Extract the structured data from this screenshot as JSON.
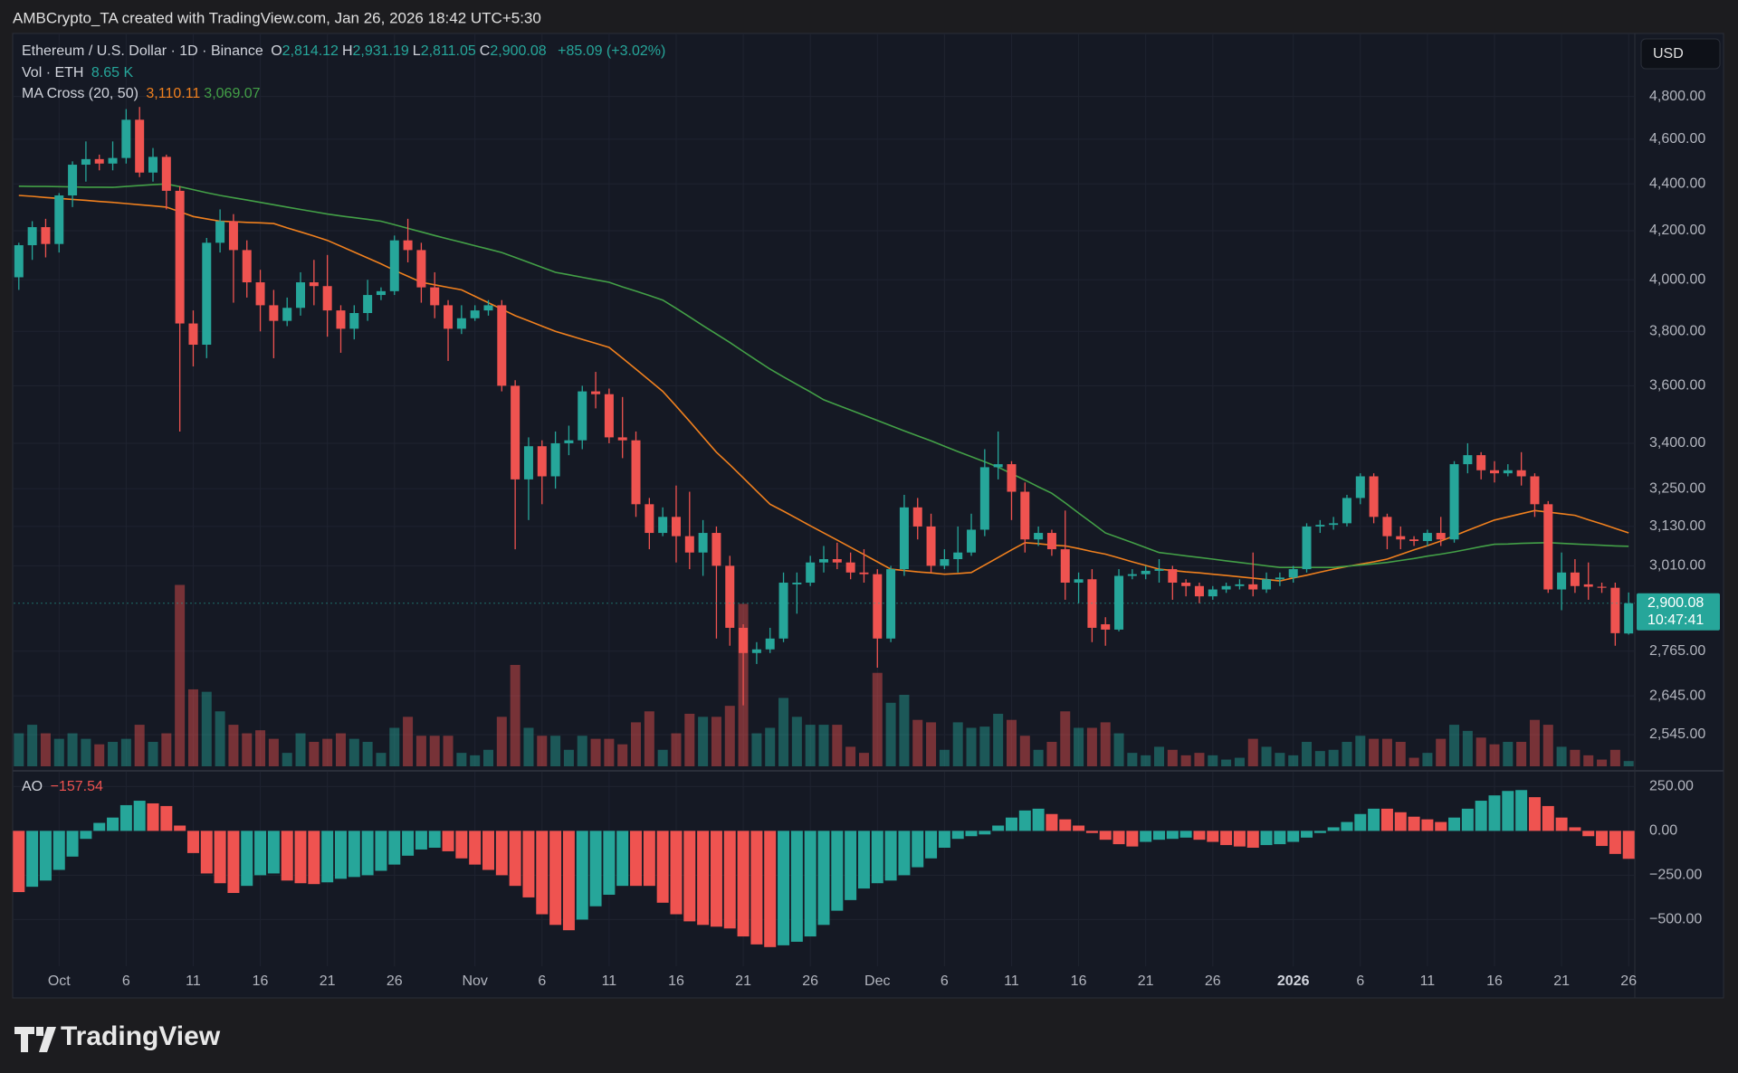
{
  "header": {
    "attribution": "AMBCrypto_TA created with TradingView.com, Jan 26, 2026 18:42 UTC+5:30",
    "currency": "USD",
    "logo": "TradingView"
  },
  "chart_data": [
    {
      "type": "candlestick",
      "title": "Ethereum / U.S. Dollar · 1D · Binance",
      "ohlc_legend": [
        {
          "key": "O",
          "value": "2,814.12"
        },
        {
          "key": "H",
          "value": "2,931.19"
        },
        {
          "key": "L",
          "value": "2,811.05"
        },
        {
          "key": "C",
          "value": "2,900.08"
        }
      ],
      "change": "+85.09 (+3.02%)",
      "volume_legend": {
        "name": "Vol · ETH",
        "value": "8.65 K"
      },
      "ma_legend": "MA Cross (20, 50)",
      "last_price_label": "2,900.08",
      "countdown": "10:47:41",
      "log_scale": true,
      "grid": true,
      "ylim": [
        2466,
        5110
      ],
      "yticks": [
        {
          "value": 4800,
          "label": "4,800.00"
        },
        {
          "value": 4600,
          "label": "4,600.00"
        },
        {
          "value": 4400,
          "label": "4,400.00"
        },
        {
          "value": 4200,
          "label": "4,200.00"
        },
        {
          "value": 4000,
          "label": "4,000.00"
        },
        {
          "value": 3800,
          "label": "3,800.00"
        },
        {
          "value": 3600,
          "label": "3,600.00"
        },
        {
          "value": 3400,
          "label": "3,400.00"
        },
        {
          "value": 3250,
          "label": "3,250.00"
        },
        {
          "value": 3130,
          "label": "3,130.00"
        },
        {
          "value": 3010,
          "label": "3,010.00"
        },
        {
          "value": 2765,
          "label": "2,765.00"
        },
        {
          "value": 2645,
          "label": "2,645.00"
        },
        {
          "value": 2545,
          "label": "2,545.00"
        }
      ],
      "colors": {
        "up": "#26a69a",
        "down": "#ef5350"
      },
      "categories": [
        null,
        null,
        null,
        "Oct",
        null,
        null,
        null,
        null,
        "6",
        null,
        null,
        null,
        null,
        "11",
        null,
        null,
        null,
        null,
        "16",
        null,
        null,
        null,
        null,
        "21",
        null,
        null,
        null,
        null,
        "26",
        null,
        null,
        null,
        null,
        null,
        "Nov",
        null,
        null,
        null,
        null,
        "6",
        null,
        null,
        null,
        null,
        "11",
        null,
        null,
        null,
        null,
        "16",
        null,
        null,
        null,
        null,
        "21",
        null,
        null,
        null,
        null,
        "26",
        null,
        null,
        null,
        null,
        "Dec",
        null,
        null,
        null,
        null,
        "6",
        null,
        null,
        null,
        null,
        "11",
        null,
        null,
        null,
        null,
        "16",
        null,
        null,
        null,
        null,
        "21",
        null,
        null,
        null,
        null,
        "26",
        null,
        null,
        null,
        null,
        null,
        "2026",
        null,
        null,
        null,
        null,
        "6",
        null,
        null,
        null,
        null,
        "11",
        null,
        null,
        null,
        null,
        "16",
        null,
        null,
        null,
        null,
        "21",
        null,
        null,
        null,
        null,
        "26"
      ],
      "open": [
        4010,
        4140,
        4215,
        4145,
        4350,
        4485,
        4510,
        4490,
        4515,
        4690,
        4450,
        4520,
        4370,
        3830,
        3750,
        4150,
        4240,
        4120,
        3990,
        3900,
        3840,
        3890,
        3990,
        3975,
        3880,
        3810,
        3870,
        3940,
        3955,
        4160,
        4120,
        3970,
        3900,
        3810,
        3850,
        3880,
        3900,
        3600,
        3280,
        3390,
        3290,
        3400,
        3410,
        3580,
        3570,
        3420,
        3410,
        3200,
        3110,
        3160,
        3100,
        3050,
        3110,
        3010,
        2830,
        2760,
        2770,
        2800,
        2955,
        2960,
        3020,
        3030,
        3020,
        2990,
        2985,
        2800,
        3000,
        3190,
        3130,
        3010,
        3030,
        3050,
        3120,
        3320,
        3330,
        3240,
        3090,
        3110,
        3060,
        2960,
        2970,
        2840,
        2825,
        2980,
        2985,
        2995,
        3000,
        2960,
        2950,
        2920,
        2940,
        2950,
        2955,
        2940,
        2970,
        2975,
        3000,
        3130,
        3135,
        3140,
        3220,
        3290,
        3160,
        3100,
        3090,
        3085,
        3110,
        3090,
        3330,
        3360,
        3310,
        3300,
        3310,
        3290,
        3200,
        2940,
        2990,
        2955,
        2948,
        2945,
        2814.12
      ],
      "high": [
        4150,
        4240,
        4250,
        4360,
        4500,
        4590,
        4530,
        4590,
        4740,
        4750,
        4560,
        4530,
        4390,
        3880,
        4170,
        4290,
        4270,
        4160,
        4040,
        3960,
        3930,
        4030,
        4080,
        4100,
        3900,
        3900,
        4000,
        3970,
        4180,
        4250,
        4150,
        4030,
        3920,
        3900,
        3900,
        3920,
        3920,
        3620,
        3420,
        3410,
        3440,
        3460,
        3600,
        3650,
        3590,
        3560,
        3440,
        3220,
        3190,
        3260,
        3240,
        3150,
        3130,
        3040,
        2840,
        2790,
        2830,
        2990,
        2990,
        3040,
        3070,
        3080,
        3050,
        3060,
        3000,
        3010,
        3230,
        3220,
        3170,
        3060,
        3130,
        3170,
        3380,
        3440,
        3340,
        3270,
        3130,
        3120,
        3180,
        2990,
        3000,
        2860,
        3000,
        3000,
        3010,
        3030,
        3010,
        2970,
        2960,
        2950,
        2960,
        2970,
        3050,
        2990,
        2990,
        3010,
        3140,
        3150,
        3160,
        3230,
        3300,
        3300,
        3170,
        3130,
        3100,
        3120,
        3160,
        3340,
        3400,
        3370,
        3340,
        3330,
        3370,
        3300,
        3210,
        3050,
        3030,
        3020,
        2960,
        2960,
        2931.19
      ],
      "low": [
        3960,
        4080,
        4090,
        4110,
        4300,
        4410,
        4460,
        4460,
        4490,
        4430,
        4410,
        4290,
        3440,
        3670,
        3700,
        4110,
        3910,
        3930,
        3800,
        3700,
        3820,
        3860,
        3900,
        3780,
        3720,
        3770,
        3840,
        3920,
        3940,
        4070,
        3910,
        3850,
        3690,
        3790,
        3840,
        3860,
        3580,
        3060,
        3150,
        3200,
        3250,
        3360,
        3380,
        3520,
        3400,
        3350,
        3160,
        3060,
        3100,
        3020,
        3000,
        2980,
        2800,
        2780,
        2620,
        2730,
        2760,
        2790,
        2870,
        2950,
        2990,
        3000,
        2970,
        2960,
        2720,
        2790,
        2980,
        3090,
        2990,
        3000,
        2990,
        3040,
        3100,
        3280,
        3150,
        3050,
        3070,
        3040,
        2910,
        2900,
        2790,
        2780,
        2820,
        2970,
        2970,
        2960,
        2910,
        2920,
        2900,
        2910,
        2930,
        2940,
        2920,
        2930,
        2950,
        2960,
        2990,
        3110,
        3120,
        3130,
        3200,
        3140,
        3060,
        3060,
        3070,
        3070,
        3070,
        3080,
        3300,
        3280,
        3270,
        3290,
        3260,
        3160,
        2930,
        2880,
        2930,
        2910,
        2930,
        2780,
        2811.05
      ],
      "close": [
        4140,
        4215,
        4145,
        4350,
        4485,
        4510,
        4490,
        4515,
        4690,
        4450,
        4520,
        4370,
        3830,
        3750,
        4150,
        4240,
        4120,
        3990,
        3900,
        3840,
        3890,
        3990,
        3975,
        3880,
        3810,
        3870,
        3940,
        3955,
        4160,
        4120,
        3970,
        3900,
        3810,
        3850,
        3880,
        3900,
        3600,
        3280,
        3390,
        3290,
        3400,
        3410,
        3580,
        3570,
        3420,
        3410,
        3200,
        3110,
        3160,
        3100,
        3050,
        3110,
        3010,
        2830,
        2760,
        2770,
        2800,
        2960,
        2960,
        3020,
        3030,
        3020,
        2990,
        2985,
        2800,
        3000,
        3190,
        3130,
        3010,
        3030,
        3050,
        3120,
        3320,
        3330,
        3240,
        3090,
        3110,
        3060,
        2960,
        2970,
        2830,
        2825,
        2980,
        2985,
        2995,
        3000,
        2960,
        2950,
        2920,
        2940,
        2950,
        2955,
        2940,
        2970,
        2975,
        3000,
        3130,
        3135,
        3140,
        3220,
        3290,
        3160,
        3100,
        3090,
        3085,
        3110,
        3090,
        3330,
        3360,
        3310,
        3300,
        3310,
        3290,
        3200,
        2940,
        2990,
        2950,
        2948,
        2945,
        2815,
        2900.08
      ],
      "volume": {
        "vlim": [
          0,
          1200
        ],
        "values": [
          54,
          68,
          54,
          45,
          54,
          45,
          36,
          40,
          45,
          68,
          40,
          54,
          297,
          126,
          122,
          90,
          68,
          54,
          59,
          45,
          22,
          54,
          40,
          45,
          54,
          45,
          40,
          22,
          63,
          81,
          50,
          50,
          50,
          22,
          18,
          27,
          81,
          166,
          63,
          50,
          50,
          27,
          50,
          45,
          45,
          36,
          72,
          90,
          27,
          54,
          86,
          81,
          81,
          99,
          266,
          54,
          63,
          112,
          81,
          68,
          68,
          68,
          32,
          22,
          153,
          104,
          117,
          76,
          72,
          27,
          72,
          63,
          65,
          86,
          76,
          50,
          27,
          40,
          90,
          63,
          63,
          72,
          54,
          22,
          18,
          32,
          27,
          18,
          22,
          18,
          11,
          14,
          45,
          32,
          22,
          18,
          40,
          25,
          27,
          40,
          50,
          45,
          45,
          40,
          14,
          22,
          45,
          68,
          58,
          47,
          36,
          40,
          40,
          76,
          68,
          32,
          27,
          18,
          11,
          27,
          8.65
        ]
      },
      "series": [
        {
          "color": "#f0801e",
          "legend_value": "3,110.11",
          "values": [
            4350,
            4346,
            4341,
            4337,
            4333,
            4329,
            4324,
            4320,
            4315,
            4310,
            4305,
            4300,
            4280,
            4260,
            4250,
            4240,
            4238,
            4235,
            4233,
            4230,
            4212,
            4195,
            4178,
            4160,
            4136,
            4112,
            4088,
            4064,
            4038,
            4014,
            3990,
            3980,
            3970,
            3960,
            3935,
            3910,
            3885,
            3860,
            3840,
            3820,
            3800,
            3785,
            3770,
            3755,
            3740,
            3700,
            3660,
            3620,
            3580,
            3528,
            3475,
            3422,
            3370,
            3328,
            3285,
            3242,
            3200,
            3178,
            3155,
            3132,
            3110,
            3088,
            3066,
            3044,
            3022,
            3000,
            2996,
            2992,
            2989,
            2985,
            2987,
            2990,
            3012,
            3035,
            3058,
            3080,
            3077,
            3073,
            3070,
            3062,
            3053,
            3045,
            3034,
            3022,
            3011,
            3000,
            2996,
            2992,
            2989,
            2985,
            2981,
            2977,
            2973,
            2969,
            2965,
            2974,
            2982,
            2991,
            3000,
            3008,
            3015,
            3022,
            3030,
            3044,
            3058,
            3071,
            3085,
            3101,
            3118,
            3134,
            3150,
            3160,
            3170,
            3180,
            3175,
            3170,
            3165,
            3151,
            3138,
            3124,
            3110.11
          ]
        },
        {
          "color": "#43a047",
          "legend_value": "3,069.07",
          "values": [
            4390,
            4389,
            4389,
            4388,
            4387,
            4386,
            4386,
            4385,
            4389,
            4393,
            4397,
            4400,
            4388,
            4375,
            4362,
            4350,
            4340,
            4330,
            4320,
            4310,
            4300,
            4290,
            4280,
            4270,
            4262,
            4255,
            4248,
            4240,
            4225,
            4210,
            4195,
            4180,
            4166,
            4152,
            4138,
            4124,
            4110,
            4090,
            4070,
            4050,
            4030,
            4020,
            4010,
            4000,
            3990,
            3972,
            3955,
            3938,
            3920,
            3888,
            3855,
            3822,
            3790,
            3758,
            3725,
            3692,
            3660,
            3632,
            3605,
            3578,
            3550,
            3532,
            3514,
            3496,
            3478,
            3460,
            3442,
            3425,
            3408,
            3390,
            3372,
            3355,
            3338,
            3320,
            3299,
            3278,
            3256,
            3235,
            3204,
            3172,
            3141,
            3110,
            3095,
            3080,
            3065,
            3050,
            3045,
            3040,
            3035,
            3030,
            3025,
            3020,
            3015,
            3010,
            3005,
            3005,
            3005,
            3005,
            3005,
            3009,
            3012,
            3016,
            3020,
            3026,
            3032,
            3039,
            3045,
            3052,
            3060,
            3068,
            3075,
            3076,
            3078,
            3079,
            3080,
            3078,
            3076,
            3074,
            3072,
            3070,
            3069.07
          ]
        }
      ]
    },
    {
      "type": "bar",
      "title": "AO",
      "last_value_label": "−157.54",
      "ylim": [
        -763,
        313
      ],
      "yticks": [
        {
          "value": 250,
          "label": "250.00"
        },
        {
          "value": 0,
          "label": "0.00"
        },
        {
          "value": -250,
          "label": "−250.00"
        },
        {
          "value": -500,
          "label": "−500.00"
        }
      ],
      "colors": {
        "up": "#26a69a",
        "down": "#ef5350"
      },
      "values": [
        -345,
        -315,
        -280,
        -220,
        -145,
        -45,
        45,
        75,
        145,
        170,
        155,
        140,
        30,
        -125,
        -240,
        -295,
        -350,
        -310,
        -250,
        -240,
        -280,
        -295,
        -300,
        -290,
        -270,
        -260,
        -250,
        -225,
        -190,
        -140,
        -105,
        -95,
        -115,
        -155,
        -190,
        -220,
        -250,
        -310,
        -375,
        -470,
        -530,
        -560,
        -500,
        -425,
        -360,
        -310,
        -310,
        -310,
        -405,
        -470,
        -510,
        -530,
        -540,
        -550,
        -595,
        -640,
        -655,
        -645,
        -625,
        -595,
        -530,
        -450,
        -390,
        -325,
        -295,
        -280,
        -250,
        -205,
        -155,
        -95,
        -45,
        -30,
        -20,
        30,
        75,
        115,
        125,
        95,
        65,
        30,
        -12,
        -50,
        -75,
        -88,
        -62,
        -50,
        -45,
        -38,
        -50,
        -62,
        -80,
        -88,
        -95,
        -80,
        -75,
        -62,
        -38,
        -12,
        20,
        50,
        95,
        125,
        125,
        105,
        80,
        65,
        50,
        75,
        125,
        170,
        200,
        225,
        230,
        190,
        140,
        75,
        20,
        -30,
        -85,
        -130,
        -157.54
      ]
    }
  ]
}
